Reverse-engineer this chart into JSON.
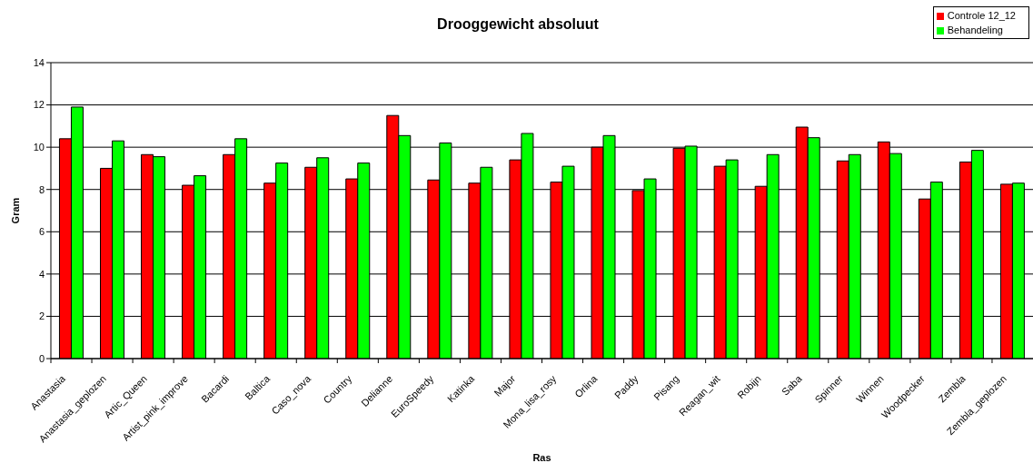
{
  "chart_data": {
    "type": "bar",
    "title": "Drooggewicht absoluut",
    "xlabel": "Ras",
    "ylabel": "Gram",
    "categories": [
      "Anastasia",
      "Anastasia_geplozen",
      "Artic_Queen",
      "Artist_pink_improve",
      "Bacardi",
      "Baltica",
      "Caso_nova",
      "Country",
      "Delianne",
      "EuroSpeedy",
      "Katinka",
      "Major",
      "Mona_lisa_rosy",
      "Orlina",
      "Paddy",
      "Pisang",
      "Reagan_wit",
      "Robijn",
      "Saba",
      "Spinner",
      "Winnen",
      "Woodpecker",
      "Zembla",
      "Zembla_geplozen"
    ],
    "series": [
      {
        "name": "Controle 12_12",
        "color": "#ff0000",
        "values": [
          10.4,
          9.0,
          9.65,
          8.2,
          9.65,
          8.3,
          9.05,
          8.5,
          11.5,
          8.45,
          8.3,
          9.4,
          8.35,
          10.0,
          7.95,
          9.95,
          9.1,
          8.15,
          10.95,
          9.35,
          10.25,
          7.55,
          9.3,
          8.25
        ]
      },
      {
        "name": "Behandeling",
        "color": "#00ff00",
        "values": [
          11.9,
          10.3,
          9.55,
          8.65,
          10.4,
          9.25,
          9.5,
          9.25,
          10.55,
          10.2,
          9.05,
          10.65,
          9.1,
          10.55,
          8.5,
          10.05,
          9.4,
          9.65,
          10.45,
          9.65,
          9.7,
          8.35,
          9.85,
          8.3
        ]
      }
    ],
    "ylim": [
      0,
      14
    ],
    "yticks": [
      0,
      2,
      4,
      6,
      8,
      10,
      12,
      14
    ],
    "grid": "y",
    "legend": "top right"
  }
}
